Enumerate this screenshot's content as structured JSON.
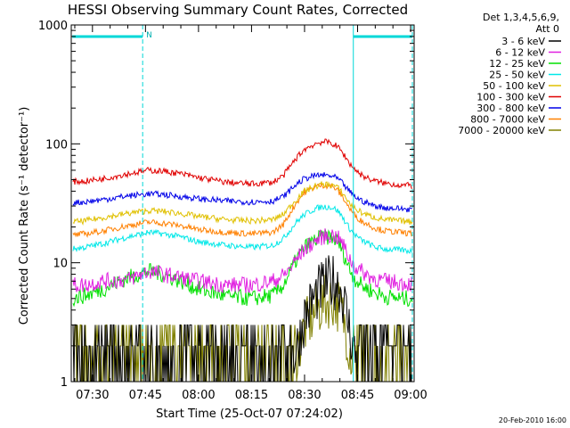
{
  "chart_data": {
    "type": "line",
    "title": "HESSI Observing Summary Count Rates, Corrected",
    "xlabel": "Start Time (25-Oct-07 07:24:02)",
    "ylabel": "Corrected Count Rate (s⁻¹ detector⁻¹)",
    "ylog": true,
    "ylim": [
      1,
      1000
    ],
    "xlim_minutes": [
      24.0,
      121.0
    ],
    "x_ticks": [
      {
        "label": "07:30",
        "minute": 30
      },
      {
        "label": "07:45",
        "minute": 45
      },
      {
        "label": "08:00",
        "minute": 60
      },
      {
        "label": "08:15",
        "minute": 75
      },
      {
        "label": "08:30",
        "minute": 90
      },
      {
        "label": "08:45",
        "minute": 105
      },
      {
        "label": "09:00",
        "minute": 120
      }
    ],
    "y_ticks": [
      {
        "label": "1",
        "value": 1
      },
      {
        "label": "10",
        "value": 10
      },
      {
        "label": "100",
        "value": 100
      },
      {
        "label": "1000",
        "value": 1000
      }
    ],
    "legend_header": [
      "Det 1,3,4,5,6,9,",
      "Att 0"
    ],
    "series": [
      {
        "name": "3 - 6 keV",
        "color": "#000000",
        "x": [
          24,
          28,
          33,
          40,
          46,
          50,
          55,
          60,
          68,
          75,
          81,
          84,
          86,
          88,
          90,
          93,
          95,
          97,
          98,
          99,
          100,
          101,
          102,
          103,
          104,
          106,
          108,
          110,
          113,
          117,
          121
        ],
        "y": [
          1.3,
          1.3,
          1.3,
          1.3,
          1.3,
          1.4,
          1.4,
          1.6,
          1.3,
          1.3,
          1.3,
          1.3,
          1.3,
          2.0,
          3.5,
          5.2,
          6.2,
          6.8,
          7.0,
          6.8,
          6.2,
          5.0,
          3.5,
          2.5,
          1.8,
          1.3,
          1.3,
          1.3,
          1.3,
          1.3,
          1.3
        ]
      },
      {
        "name": "6 - 12 keV",
        "color": "#e020e0",
        "x": [
          24,
          28,
          33,
          40,
          46,
          50,
          55,
          60,
          68,
          75,
          81,
          84,
          86,
          88,
          90,
          93,
          95,
          97,
          98,
          99,
          100,
          101,
          102,
          103,
          104,
          106,
          108,
          110,
          113,
          117,
          121
        ],
        "y": [
          6.5,
          6.5,
          7.0,
          7.2,
          8.5,
          8.0,
          7.5,
          7.0,
          6.5,
          6.5,
          7.0,
          7.8,
          9.0,
          11.0,
          13.0,
          15.2,
          16.5,
          17.0,
          17.0,
          16.5,
          15.5,
          14.0,
          12.0,
          10.5,
          9.5,
          8.5,
          7.8,
          7.3,
          7.0,
          6.8,
          6.6
        ]
      },
      {
        "name": "12 - 25 keV",
        "color": "#00e000",
        "x": [
          24,
          28,
          33,
          40,
          46,
          50,
          55,
          60,
          68,
          75,
          81,
          84,
          86,
          88,
          90,
          93,
          95,
          97,
          98,
          99,
          100,
          101,
          102,
          103,
          104,
          106,
          108,
          110,
          113,
          117,
          121
        ],
        "y": [
          5.0,
          5.3,
          6.0,
          7.5,
          8.5,
          8.0,
          7.0,
          6.0,
          5.2,
          5.0,
          5.3,
          6.5,
          8.5,
          11.0,
          13.5,
          15.5,
          16.5,
          16.5,
          16.2,
          15.5,
          14.0,
          12.0,
          10.0,
          8.5,
          7.5,
          6.5,
          6.0,
          5.6,
          5.2,
          5.0,
          5.0
        ]
      },
      {
        "name": "25 - 50 keV",
        "color": "#00e8e8",
        "x": [
          24,
          28,
          33,
          40,
          46,
          50,
          55,
          60,
          68,
          75,
          81,
          84,
          86,
          88,
          90,
          93,
          95,
          97,
          98,
          99,
          100,
          101,
          102,
          103,
          104,
          106,
          108,
          110,
          113,
          117,
          121
        ],
        "y": [
          13.0,
          13.5,
          14.5,
          16.5,
          18.0,
          17.5,
          16.5,
          15.0,
          14.0,
          13.5,
          14.0,
          16.0,
          19.0,
          22.5,
          25.5,
          28.5,
          29.5,
          29.5,
          29.0,
          28.0,
          26.0,
          23.5,
          21.0,
          19.0,
          17.5,
          15.5,
          14.5,
          13.5,
          13.0,
          12.8,
          12.5
        ]
      },
      {
        "name": "50 - 100 keV",
        "color": "#e0c000",
        "x": [
          24,
          28,
          33,
          40,
          46,
          50,
          55,
          60,
          68,
          75,
          81,
          84,
          86,
          88,
          90,
          93,
          95,
          97,
          98,
          99,
          100,
          101,
          102,
          103,
          104,
          106,
          108,
          110,
          113,
          117,
          121
        ],
        "y": [
          22.0,
          22.5,
          24.0,
          26.0,
          27.5,
          27.0,
          26.0,
          24.5,
          23.0,
          22.5,
          23.0,
          25.5,
          30.0,
          35.0,
          40.0,
          44.0,
          45.5,
          45.5,
          45.0,
          43.5,
          41.0,
          37.5,
          34.0,
          31.0,
          29.0,
          26.5,
          25.0,
          24.0,
          23.0,
          22.5,
          22.0
        ]
      },
      {
        "name": "100 - 300 keV",
        "color": "#e00000",
        "x": [
          24,
          28,
          33,
          40,
          46,
          50,
          55,
          60,
          68,
          75,
          81,
          84,
          86,
          88,
          90,
          93,
          95,
          97,
          98,
          99,
          100,
          101,
          102,
          103,
          104,
          106,
          108,
          110,
          113,
          117,
          121
        ],
        "y": [
          48.0,
          48.5,
          51.0,
          56.0,
          60.0,
          59.0,
          56.0,
          52.0,
          47.5,
          46.0,
          47.5,
          54.0,
          65.0,
          78.0,
          90.0,
          100.0,
          104.0,
          103.0,
          100.0,
          96.0,
          90.0,
          82.0,
          74.0,
          67.0,
          62.0,
          55.0,
          51.0,
          48.5,
          46.5,
          45.0,
          44.5
        ]
      },
      {
        "name": "300 - 800 keV",
        "color": "#0000e8",
        "x": [
          24,
          28,
          33,
          40,
          46,
          50,
          55,
          60,
          68,
          75,
          81,
          84,
          86,
          88,
          90,
          93,
          95,
          97,
          98,
          99,
          100,
          101,
          102,
          103,
          104,
          106,
          108,
          110,
          113,
          117,
          121
        ],
        "y": [
          32.0,
          32.5,
          34.0,
          36.5,
          38.0,
          37.5,
          36.0,
          34.5,
          33.0,
          32.5,
          33.0,
          36.0,
          41.0,
          46.5,
          51.0,
          54.0,
          54.5,
          54.0,
          53.0,
          51.5,
          49.0,
          45.5,
          42.0,
          39.0,
          36.5,
          33.5,
          31.5,
          30.0,
          29.0,
          28.5,
          28.0
        ]
      },
      {
        "name": "800 - 7000 keV",
        "color": "#ff8000",
        "x": [
          24,
          28,
          33,
          40,
          46,
          50,
          55,
          60,
          68,
          75,
          81,
          84,
          86,
          88,
          90,
          93,
          95,
          97,
          98,
          99,
          100,
          101,
          102,
          103,
          104,
          106,
          108,
          110,
          113,
          117,
          121
        ],
        "y": [
          17.0,
          17.5,
          18.5,
          20.5,
          22.0,
          21.5,
          20.5,
          19.0,
          18.0,
          17.5,
          18.0,
          21.0,
          26.5,
          33.0,
          39.0,
          43.5,
          45.0,
          44.5,
          43.5,
          41.5,
          38.5,
          35.0,
          31.0,
          28.0,
          25.5,
          22.5,
          21.0,
          19.5,
          18.5,
          18.0,
          17.5
        ]
      },
      {
        "name": "7000 - 20000 keV",
        "color": "#808000",
        "x": [
          24,
          28,
          33,
          40,
          46,
          50,
          55,
          60,
          68,
          75,
          81,
          84,
          86,
          88,
          90,
          93,
          95,
          97,
          98,
          99,
          100,
          101,
          102,
          103,
          104,
          106,
          108,
          110,
          113,
          117,
          121
        ],
        "y": [
          1.2,
          1.2,
          1.2,
          1.2,
          1.2,
          1.2,
          1.2,
          1.2,
          1.2,
          1.2,
          1.2,
          1.2,
          1.3,
          1.8,
          2.8,
          3.8,
          4.5,
          4.8,
          4.8,
          4.6,
          4.2,
          3.4,
          2.5,
          1.8,
          1.4,
          1.2,
          1.2,
          1.2,
          1.2,
          1.2,
          1.2
        ]
      }
    ],
    "night_bars": [
      {
        "label": "N",
        "start_minute": 24.3,
        "end_minute": 44.2
      },
      {
        "label": "",
        "start_minute": 103.8,
        "end_minute": 120.5
      }
    ],
    "vertical_markers_minutes": [
      44.2,
      103.8,
      120.5
    ]
  },
  "footer": {
    "date_stamp": "20-Feb-2010 16:00"
  }
}
